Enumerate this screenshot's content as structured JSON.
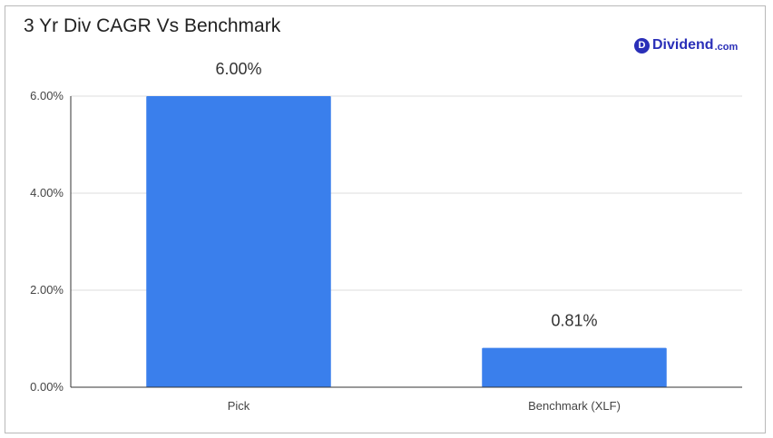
{
  "chart_data": {
    "type": "bar",
    "title": "3 Yr Div CAGR Vs Benchmark",
    "categories": [
      "Pick",
      "Benchmark (XLF)"
    ],
    "values": [
      6.0,
      0.81
    ],
    "data_labels": [
      "6.00%",
      "0.81%"
    ],
    "y_ticks": [
      0,
      2,
      4,
      6
    ],
    "y_tick_labels": [
      "0.00%",
      "2.00%",
      "4.00%",
      "6.00%"
    ],
    "ylim": [
      0,
      6
    ],
    "grid": true,
    "legend": "none",
    "bar_color": "#3a7fec",
    "grid_color": "#dcdcdc"
  },
  "brand": {
    "mark": "D",
    "name": "Dividend",
    "tld": ".com",
    "color": "#2a2fb8"
  }
}
